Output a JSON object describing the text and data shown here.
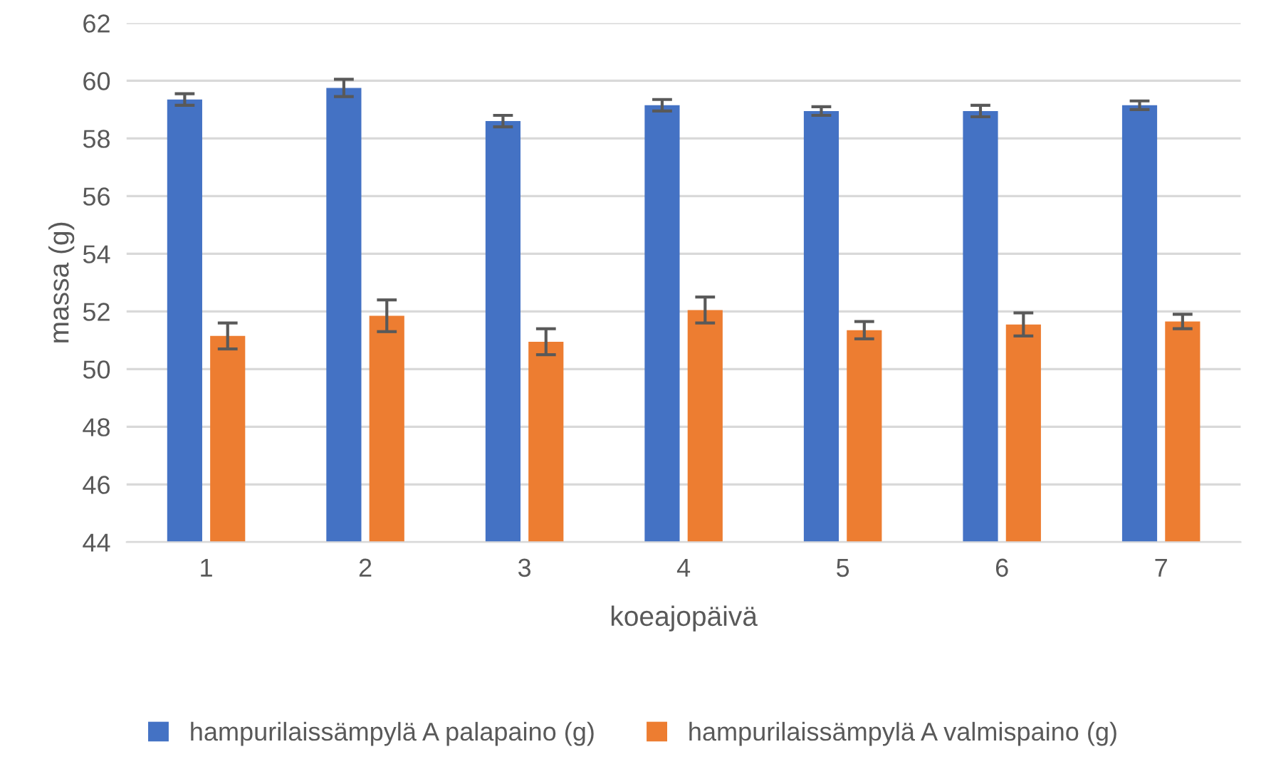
{
  "chart_data": {
    "type": "bar",
    "xlabel": "koeajopäivä",
    "ylabel": "massa (g)",
    "categories": [
      "1",
      "2",
      "3",
      "4",
      "5",
      "6",
      "7"
    ],
    "series": [
      {
        "name": "hampurilaissämpylä A palapaino (g)",
        "color": "#4472c4",
        "values": [
          59.35,
          59.75,
          58.6,
          59.15,
          58.95,
          58.95,
          59.15
        ],
        "errors": [
          0.2,
          0.3,
          0.2,
          0.2,
          0.15,
          0.2,
          0.15
        ]
      },
      {
        "name": "hampurilaissämpylä A valmispaino (g)",
        "color": "#ed7d31",
        "values": [
          51.15,
          51.85,
          50.95,
          52.05,
          51.35,
          51.55,
          51.65
        ],
        "errors": [
          0.45,
          0.55,
          0.45,
          0.45,
          0.3,
          0.4,
          0.25
        ]
      }
    ],
    "ylim": [
      44,
      62
    ],
    "yticks": [
      44,
      46,
      48,
      50,
      52,
      54,
      56,
      58,
      60,
      62
    ],
    "grid": "y",
    "legend": "bottom"
  }
}
